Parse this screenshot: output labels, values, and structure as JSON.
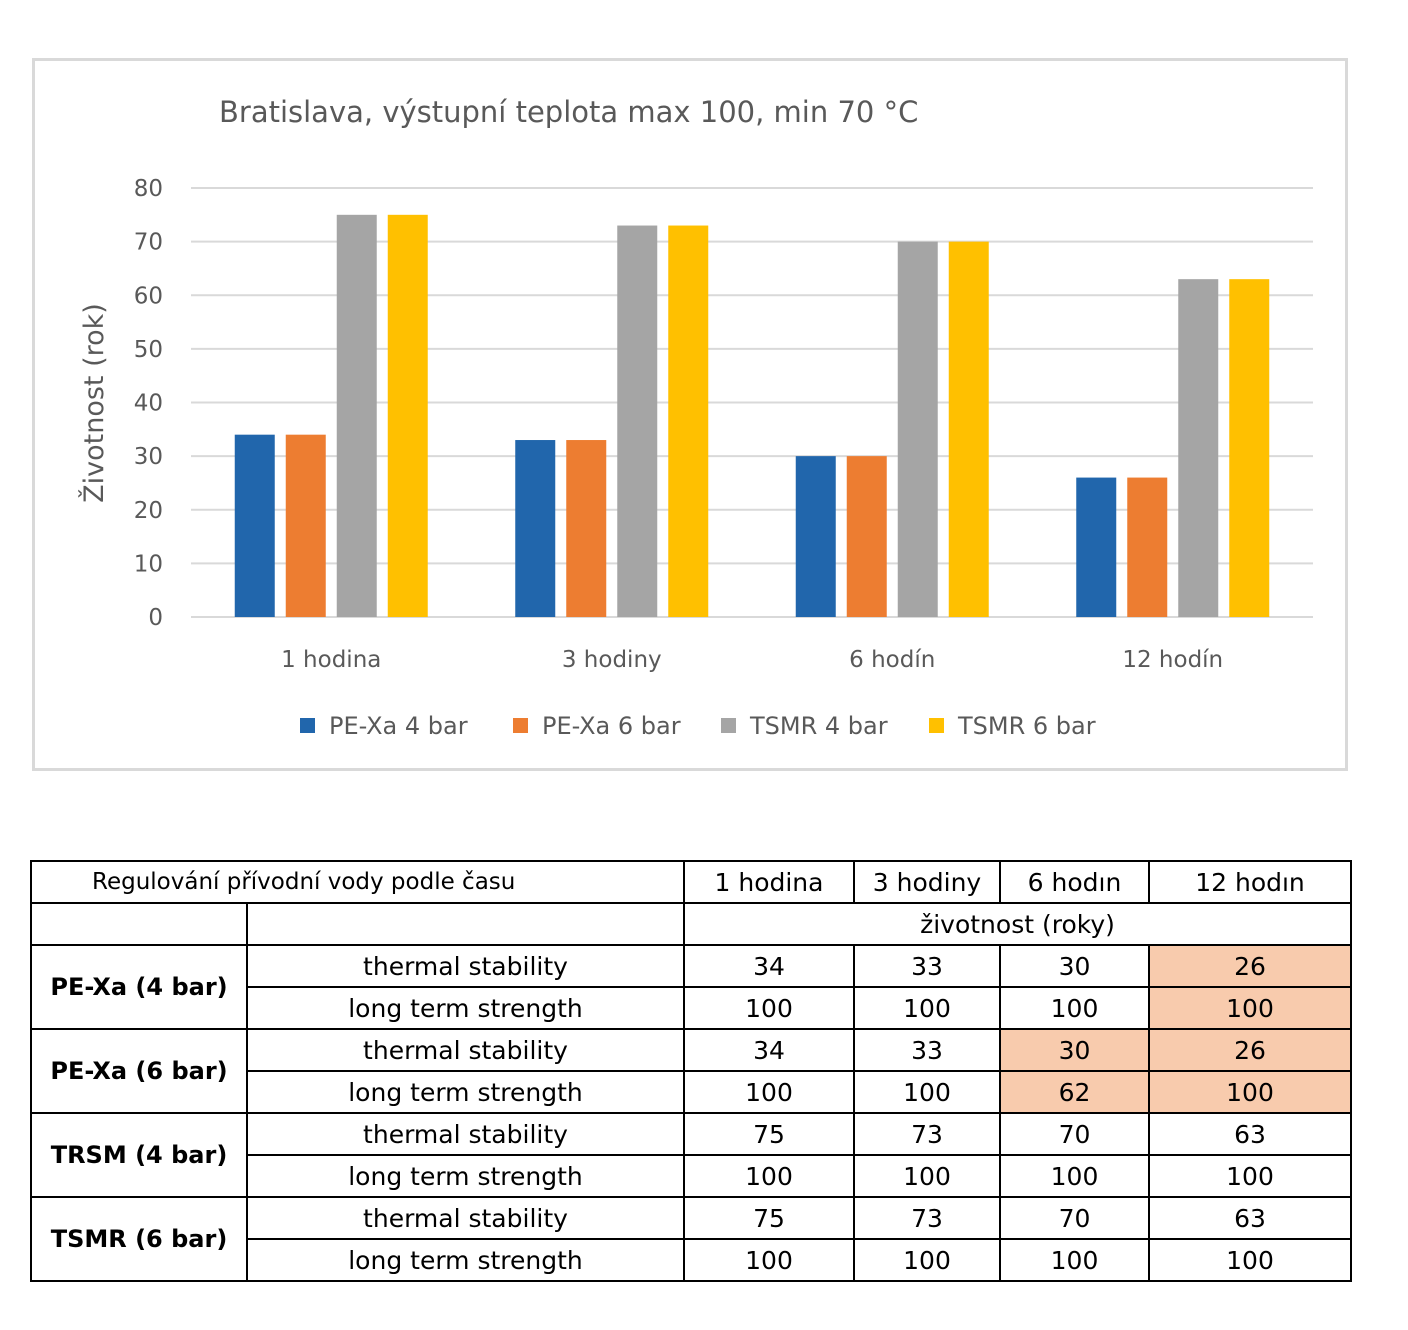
{
  "chart_data": {
    "type": "bar",
    "title": "Bratislava, výstupní teplota max 100, min 70 °C",
    "ylabel": "Životnost (rok)",
    "xlabel": "",
    "ylim": [
      0,
      80
    ],
    "yticks": [
      "0",
      "10",
      "20",
      "30",
      "40",
      "50",
      "60",
      "70",
      "80"
    ],
    "categories": [
      "1 hodina",
      "3 hodiny",
      "6 hodín",
      "12 hodín"
    ],
    "grid": true,
    "legend_position": "bottom",
    "series": [
      {
        "name": "PE-Xa 4 bar",
        "color": "#2166ac",
        "values": [
          34,
          33,
          30,
          26
        ]
      },
      {
        "name": "PE-Xa 6 bar",
        "color": "#ed7d31",
        "values": [
          34,
          33,
          30,
          26
        ]
      },
      {
        "name": "TSMR 4 bar",
        "color": "#a5a5a5",
        "values": [
          75,
          73,
          70,
          63
        ]
      },
      {
        "name": "TSMR 6 bar",
        "color": "#ffc000",
        "values": [
          75,
          73,
          70,
          63
        ]
      }
    ]
  },
  "table": {
    "caption": "Regulování přívodní vody podle času",
    "columns": [
      "1 hodina",
      "3 hodiny",
      "6 hodın",
      "12 hodın"
    ],
    "unit_header": "životnost  (roky)",
    "highlight_color": "#f8cbad",
    "groups": [
      {
        "label": "PE-Xa (4 bar)",
        "rows": [
          {
            "label": "thermal stability",
            "values": [
              "34",
              "33",
              "30",
              "26"
            ],
            "highlight": [
              false,
              false,
              false,
              true
            ]
          },
          {
            "label": "long term strength",
            "values": [
              "100",
              "100",
              "100",
              "100"
            ],
            "highlight": [
              false,
              false,
              false,
              true
            ]
          }
        ]
      },
      {
        "label": "PE-Xa (6 bar)",
        "rows": [
          {
            "label": "thermal stability",
            "values": [
              "34",
              "33",
              "30",
              "26"
            ],
            "highlight": [
              false,
              false,
              true,
              true
            ]
          },
          {
            "label": "long term strength",
            "values": [
              "100",
              "100",
              "62",
              "100"
            ],
            "highlight": [
              false,
              false,
              true,
              true
            ]
          }
        ]
      },
      {
        "label": "TRSM (4 bar)",
        "rows": [
          {
            "label": "thermal stability",
            "values": [
              "75",
              "73",
              "70",
              "63"
            ],
            "highlight": [
              false,
              false,
              false,
              false
            ]
          },
          {
            "label": "long term strength",
            "values": [
              "100",
              "100",
              "100",
              "100"
            ],
            "highlight": [
              false,
              false,
              false,
              false
            ]
          }
        ]
      },
      {
        "label": "TSMR (6 bar)",
        "rows": [
          {
            "label": "thermal stability",
            "values": [
              "75",
              "73",
              "70",
              "63"
            ],
            "highlight": [
              false,
              false,
              false,
              false
            ]
          },
          {
            "label": "long term strength",
            "values": [
              "100",
              "100",
              "100",
              "100"
            ],
            "highlight": [
              false,
              false,
              false,
              false
            ]
          }
        ]
      }
    ]
  }
}
